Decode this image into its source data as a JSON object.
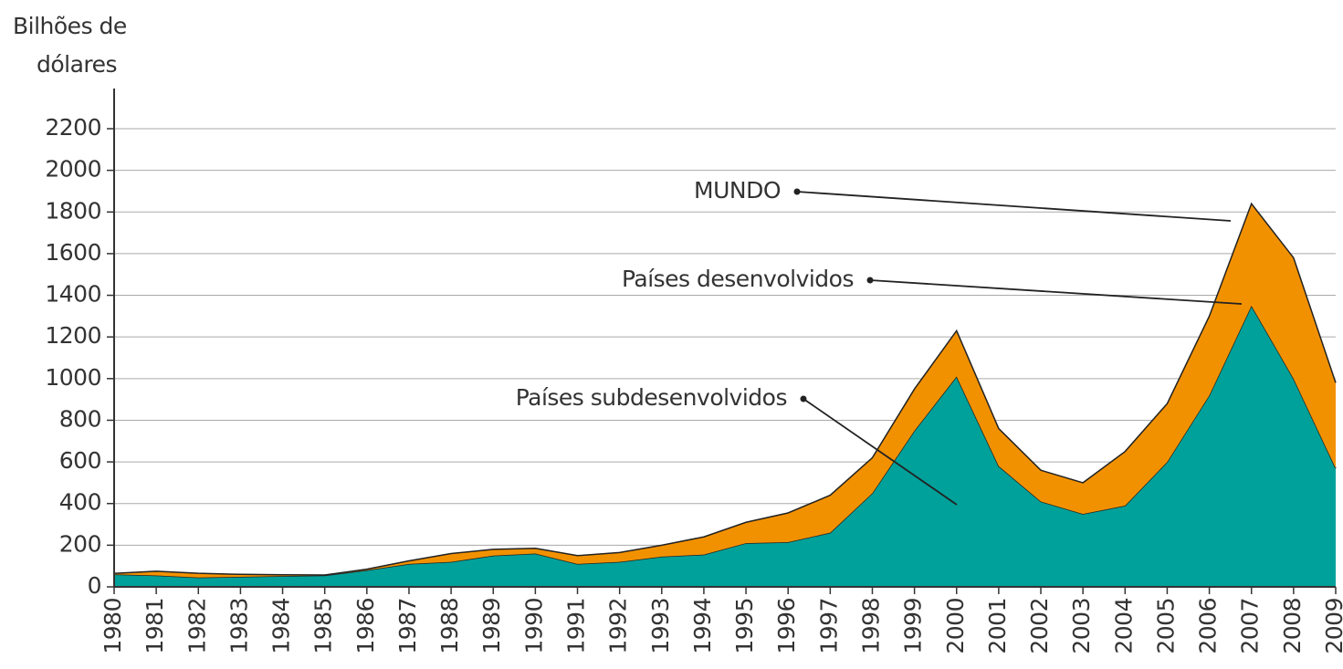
{
  "chart_data": {
    "type": "stacked_area",
    "ylabel": [
      "Bilhões de",
      "dólares"
    ],
    "x": [
      1980,
      1981,
      1982,
      1983,
      1984,
      1985,
      1986,
      1987,
      1988,
      1989,
      1990,
      1991,
      1992,
      1993,
      1994,
      1995,
      1996,
      1997,
      1998,
      1999,
      2000,
      2001,
      2002,
      2003,
      2004,
      2005,
      2006,
      2007,
      2008,
      2009
    ],
    "xlim": [
      1980,
      2009
    ],
    "series": [
      {
        "color": "#00a19a",
        "values": [
          60,
          55,
          45,
          48,
          52,
          55,
          80,
          110,
          120,
          150,
          160,
          110,
          120,
          145,
          155,
          210,
          215,
          260,
          450,
          750,
          1010,
          580,
          410,
          350,
          390,
          600,
          920,
          1350,
          1000,
          570
        ]
      },
      {
        "color": "#f29100",
        "values": [
          5,
          20,
          20,
          12,
          6,
          2,
          5,
          15,
          40,
          30,
          25,
          40,
          45,
          55,
          85,
          100,
          140,
          180,
          170,
          200,
          220,
          180,
          150,
          150,
          260,
          280,
          380,
          490,
          580,
          410
        ]
      }
    ],
    "ylim": [
      0,
      2200
    ],
    "yticks": [
      0,
      200,
      400,
      600,
      800,
      1000,
      1200,
      1400,
      1600,
      1800,
      2000,
      2200
    ],
    "grid": true,
    "annotations": [
      "MUNDO",
      "Países desenvolvidos",
      "Países subdesenvolvidos"
    ]
  }
}
